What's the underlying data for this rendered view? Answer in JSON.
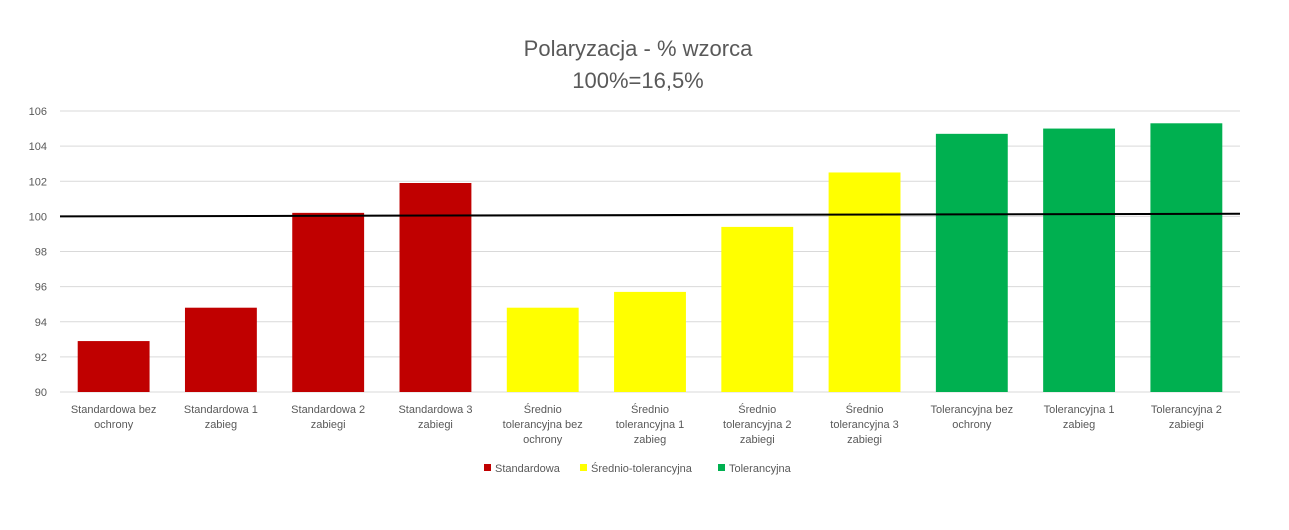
{
  "colors": {
    "background": "#ffffff",
    "grid": "#d9d9d9",
    "axis_text": "#595959",
    "title_text": "#595959",
    "standard": "#c00000",
    "medium": "#ffff00",
    "tolerant": "#00b050",
    "reference_line": "#000000"
  },
  "chart_data": {
    "type": "bar",
    "title": "Polaryzacja - % wzorca",
    "subtitle": "100%=16,5%",
    "ylim": [
      90,
      106
    ],
    "yticks": [
      90,
      92,
      94,
      96,
      98,
      100,
      102,
      104,
      106
    ],
    "grid": true,
    "legend_position": "bottom",
    "categories": [
      [
        "Standardowa bez",
        "ochrony"
      ],
      [
        "Standardowa 1",
        "zabieg"
      ],
      [
        "Standardowa 2",
        "zabiegi"
      ],
      [
        "Standardowa 3",
        "zabiegi"
      ],
      [
        "Średnio",
        "tolerancyjna bez",
        "ochrony"
      ],
      [
        "Średnio",
        "tolerancyjna 1",
        "zabieg"
      ],
      [
        "Średnio",
        "tolerancyjna 2",
        "zabiegi"
      ],
      [
        "Średnio",
        "tolerancyjna 3",
        "zabiegi"
      ],
      [
        "Tolerancyjna bez",
        "ochrony"
      ],
      [
        "Tolerancyjna 1",
        "zabieg"
      ],
      [
        "Tolerancyjna 2",
        "zabiegi"
      ]
    ],
    "values": [
      92.9,
      94.8,
      100.2,
      101.9,
      94.8,
      95.7,
      99.4,
      102.5,
      104.7,
      105.0,
      105.3
    ],
    "groups": [
      0,
      0,
      0,
      0,
      1,
      1,
      1,
      1,
      2,
      2,
      2
    ],
    "legend": [
      {
        "name": "Standardowa",
        "color_key": "standard"
      },
      {
        "name": "Średnio-tolerancyjna",
        "color_key": "medium"
      },
      {
        "name": "Tolerancyjna",
        "color_key": "tolerant"
      }
    ],
    "reference_line": {
      "start": 100.0,
      "end": 100.15
    }
  }
}
